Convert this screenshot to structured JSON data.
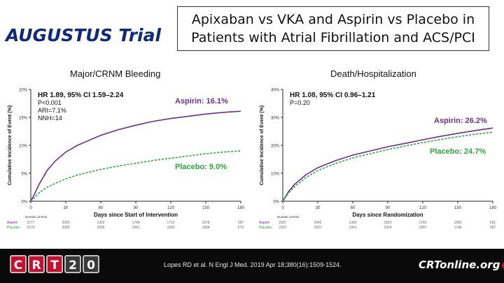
{
  "header": {
    "title": "AUGUSTUS Trial",
    "subtitle_line1": "Apixaban vs VKA and Aspirin vs Placebo in",
    "subtitle_line2": "Patients with Atrial Fibrillation and ACS/PCI"
  },
  "colors": {
    "aspirin": "#6a2f8c",
    "placebo": "#2aa83c",
    "title": "#0e2a7a",
    "logo_red": "#c8102e"
  },
  "chart_data": [
    {
      "type": "line",
      "panel_title": "Major/CRNM Bleeding",
      "xlabel": "Days since Start of Intervention",
      "ylabel": "Cumulative Incidence of Event (%)",
      "xlim": [
        0,
        180
      ],
      "ylim": [
        0,
        20
      ],
      "xticks": [
        "0",
        "30",
        "60",
        "90",
        "120",
        "150",
        "180"
      ],
      "yticks": [
        "0%",
        "5%",
        "10%",
        "15%",
        "20%"
      ],
      "stats": [
        "HR 1.89, 95% CI 1.59–2.24",
        "P<0.001",
        "ARI=7.1%",
        "NNH=14"
      ],
      "series": [
        {
          "name": "Aspirin",
          "label": "Aspirin: 16.1%",
          "x": [
            0,
            3,
            7,
            14,
            21,
            30,
            40,
            50,
            60,
            75,
            90,
            105,
            120,
            135,
            150,
            165,
            180
          ],
          "y": [
            0,
            1.2,
            3.0,
            5.5,
            7.2,
            8.8,
            10.0,
            10.9,
            11.8,
            12.8,
            13.6,
            14.3,
            14.8,
            15.2,
            15.6,
            15.9,
            16.1
          ]
        },
        {
          "name": "Placebo",
          "label": "Placebo: 9.0%",
          "x": [
            0,
            3,
            7,
            14,
            21,
            30,
            40,
            50,
            60,
            75,
            90,
            105,
            120,
            135,
            150,
            165,
            180
          ],
          "y": [
            0,
            0.6,
            1.5,
            2.5,
            3.2,
            4.0,
            4.7,
            5.2,
            5.7,
            6.3,
            6.8,
            7.3,
            7.7,
            8.1,
            8.5,
            8.8,
            9.0
          ]
        }
      ],
      "risk_table": {
        "header": "Number at Risk",
        "rows": [
          {
            "label": "Aspirin",
            "values": [
              "2277",
              "2003",
              "1902",
              "1748",
              "1710",
              "1678",
              "587"
            ]
          },
          {
            "label": "Placebo",
            "values": [
              "2279",
              "2095",
              "2006",
              "1941",
              "1890",
              "1834",
              "579"
            ]
          }
        ]
      }
    },
    {
      "type": "line",
      "panel_title": "Death/Hospitalization",
      "xlabel": "Days since Randomization",
      "ylabel": "Cumulative Incidence of Event (%)",
      "xlim": [
        0,
        180
      ],
      "ylim": [
        0,
        40
      ],
      "xticks": [
        "0",
        "30",
        "60",
        "90",
        "120",
        "150",
        "180"
      ],
      "yticks": [
        "0%",
        "10%",
        "20%",
        "30%",
        "40%"
      ],
      "stats": [
        "HR 1.08, 95% CI 0.96–1.21",
        "P=0.20"
      ],
      "series": [
        {
          "name": "Aspirin",
          "label": "Aspirin: 26.2%",
          "x": [
            0,
            5,
            10,
            20,
            30,
            45,
            60,
            75,
            90,
            105,
            120,
            135,
            150,
            165,
            180
          ],
          "y": [
            0,
            3.5,
            6.0,
            9.5,
            12.0,
            14.5,
            16.5,
            18.0,
            19.5,
            20.7,
            22.0,
            23.2,
            24.3,
            25.3,
            26.2
          ]
        },
        {
          "name": "Placebo",
          "label": "Placebo: 24.7%",
          "x": [
            0,
            5,
            10,
            20,
            30,
            45,
            60,
            75,
            90,
            105,
            120,
            135,
            150,
            165,
            180
          ],
          "y": [
            0,
            3.0,
            5.2,
            8.5,
            11.0,
            13.5,
            15.5,
            17.0,
            18.5,
            19.8,
            21.0,
            22.1,
            23.1,
            24.0,
            24.7
          ]
        }
      ],
      "risk_table": {
        "header": "Number at Risk",
        "rows": [
          {
            "label": "Aspirin",
            "values": [
              "2307",
              "2042",
              "1383",
              "1823",
              "1782",
              "1800",
              "591"
            ]
          },
          {
            "label": "Placebo",
            "values": [
              "2307",
              "2097",
              "1341",
              "1834",
              "1807",
              "1746",
              "597"
            ]
          }
        ]
      }
    }
  ],
  "footer": {
    "logo_chars": [
      "C",
      "R",
      "T",
      "2",
      "0"
    ],
    "citation": "Lopes RD et al. N Engl J Med. 2019 Apr 18;380(16):1509-1524.",
    "site": "CRTonline.org"
  }
}
